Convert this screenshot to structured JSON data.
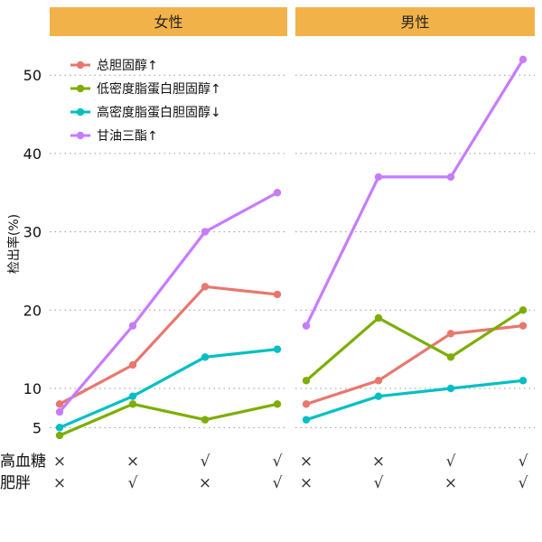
{
  "chart_data": {
    "type": "line",
    "ylabel": "检出率(%)",
    "y_ticks": [
      5,
      10,
      20,
      30,
      40,
      50
    ],
    "ylim": [
      3,
      53
    ],
    "grid": "horizontal dotted",
    "legend_position": "top-left",
    "facets": [
      "女性",
      "男性"
    ],
    "x_groups": [
      {
        "label": "高血糖",
        "values": [
          "×",
          "×",
          "√",
          "√"
        ]
      },
      {
        "label": "肥胖",
        "values": [
          "×",
          "√",
          "×",
          "√"
        ]
      }
    ],
    "series": [
      {
        "name": "总胆固醇↑",
        "color": "#E8776E",
        "女性": [
          8,
          13,
          23,
          22
        ],
        "男性": [
          8,
          11,
          17,
          18
        ]
      },
      {
        "name": "低密度脂蛋白胆固醇↑",
        "color": "#7CAE00",
        "女性": [
          4,
          8,
          6,
          8
        ],
        "男性": [
          11,
          19,
          14,
          20
        ]
      },
      {
        "name": "高密度脂蛋白胆固醇↓",
        "color": "#00BFC4",
        "女性": [
          5,
          9,
          14,
          15
        ],
        "男性": [
          6,
          9,
          10,
          11
        ]
      },
      {
        "name": "甘油三酯↑",
        "color": "#C77CFF",
        "女性": [
          7,
          18,
          30,
          35
        ],
        "男性": [
          18,
          37,
          37,
          52
        ]
      }
    ]
  },
  "colors": {
    "strip": "#F2B24A",
    "grid": "#999999"
  }
}
